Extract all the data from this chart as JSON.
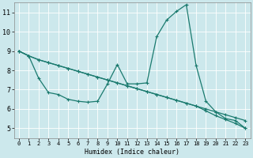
{
  "xlabel": "Humidex (Indice chaleur)",
  "bg_color": "#cce8ec",
  "grid_color": "#b0d4d8",
  "line_color": "#1a7a6e",
  "xlim": [
    -0.5,
    23.5
  ],
  "ylim": [
    4.5,
    11.5
  ],
  "xticks": [
    0,
    1,
    2,
    3,
    4,
    5,
    6,
    7,
    8,
    9,
    10,
    11,
    12,
    13,
    14,
    15,
    16,
    17,
    18,
    19,
    20,
    21,
    22,
    23
  ],
  "yticks": [
    5,
    6,
    7,
    8,
    9,
    10,
    11
  ],
  "series1_x": [
    0,
    1,
    2,
    3,
    4,
    5,
    6,
    7,
    8,
    9,
    10,
    11,
    12,
    13,
    14,
    15,
    16,
    17,
    18,
    19,
    20,
    21,
    22,
    23
  ],
  "series1_y": [
    9.0,
    8.75,
    8.55,
    8.4,
    8.25,
    8.1,
    7.95,
    7.8,
    7.65,
    7.5,
    7.35,
    7.2,
    7.05,
    6.9,
    6.75,
    6.6,
    6.45,
    6.3,
    6.15,
    6.0,
    5.85,
    5.7,
    5.55,
    5.4
  ],
  "series2_x": [
    0,
    1,
    2,
    3,
    4,
    5,
    6,
    7,
    8,
    9,
    10,
    11,
    12,
    13,
    14,
    15,
    16,
    17,
    18,
    19,
    20,
    21,
    22,
    23
  ],
  "series2_y": [
    9.0,
    8.75,
    8.55,
    8.4,
    8.25,
    8.1,
    7.95,
    7.8,
    7.65,
    7.5,
    7.35,
    7.2,
    7.05,
    6.9,
    6.75,
    6.6,
    6.45,
    6.3,
    6.15,
    5.9,
    5.65,
    5.45,
    5.25,
    5.0
  ],
  "series3_x": [
    0,
    1,
    2,
    3,
    4,
    5,
    6,
    7,
    8,
    9,
    10,
    11,
    12,
    13,
    14,
    15,
    16,
    17,
    18,
    19,
    20,
    21,
    22,
    23
  ],
  "series3_y": [
    9.0,
    8.75,
    7.6,
    6.85,
    6.75,
    6.5,
    6.4,
    6.35,
    6.4,
    7.3,
    8.3,
    7.3,
    7.3,
    7.35,
    9.75,
    10.6,
    11.05,
    11.4,
    8.25,
    6.4,
    5.85,
    5.5,
    5.4,
    5.0
  ]
}
